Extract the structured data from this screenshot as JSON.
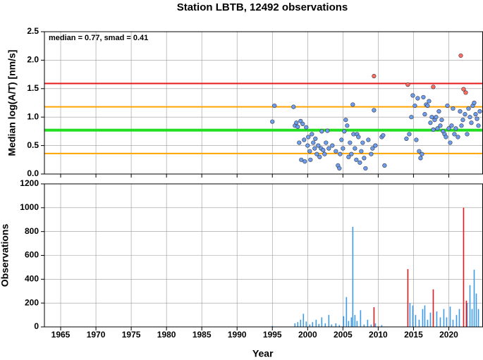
{
  "chart_data": [
    {
      "type": "scatter",
      "title": "Station LBTB, 12492 observations",
      "annotation": "median = 0.77, smad = 0.41",
      "ylabel": "Median log(A/T) [nm/s]",
      "xlim": [
        1962.7,
        2024.8
      ],
      "xticks": [
        1965,
        1970,
        1975,
        1980,
        1985,
        1990,
        1995,
        2000,
        2005,
        2010,
        2015,
        2020
      ],
      "ylim": [
        0,
        2.5
      ],
      "yticks": [
        {
          "value": 0,
          "label": "0.0"
        },
        {
          "value": 0.5,
          "label": "0.5"
        },
        {
          "value": 1,
          "label": "1.0"
        },
        {
          "value": 1.5,
          "label": "1.5"
        },
        {
          "value": 2,
          "label": "2.0"
        },
        {
          "value": 2.5,
          "label": "2.5"
        }
      ],
      "grid": true,
      "hlines": [
        {
          "value": 1.59,
          "color": "#e41a1c"
        },
        {
          "value": 1.18,
          "color": "#ffa500"
        },
        {
          "value": 0.77,
          "color": "#22dd22"
        },
        {
          "value": 0.36,
          "color": "#ffa500"
        }
      ],
      "series": [
        {
          "color": "#6d9eeb",
          "x": [
            1995.0,
            1995.3,
            1998.0,
            1998.2,
            1998.4,
            1998.6,
            1998.8,
            1999.0,
            1999.1,
            1999.3,
            1999.5,
            1999.6,
            1999.8,
            2000.0,
            2000.1,
            2000.3,
            2000.4,
            2000.6,
            2000.8,
            2001.0,
            2001.1,
            2001.3,
            2001.5,
            2001.7,
            2001.9,
            2002.0,
            2002.2,
            2002.4,
            2002.6,
            2002.8,
            2003.0,
            2003.5,
            2004.0,
            2004.3,
            2004.5,
            2004.6,
            2004.8,
            2005.0,
            2005.2,
            2005.4,
            2005.6,
            2005.8,
            2006.0,
            2006.2,
            2006.4,
            2006.5,
            2006.7,
            2006.9,
            2007.0,
            2007.2,
            2007.4,
            2007.6,
            2007.8,
            2008.0,
            2008.2,
            2008.6,
            2009.0,
            2009.2,
            2009.4,
            2009.6,
            2010.5,
            2010.7,
            2010.9,
            2014.0,
            2014.4,
            2014.7,
            2014.9,
            2015.2,
            2015.4,
            2015.6,
            2015.8,
            2016.0,
            2016.2,
            2016.4,
            2016.6,
            2016.8,
            2017.0,
            2017.2,
            2017.4,
            2017.6,
            2017.8,
            2018.0,
            2018.2,
            2018.4,
            2018.6,
            2018.8,
            2019.0,
            2019.2,
            2019.4,
            2019.6,
            2019.8,
            2020.0,
            2020.2,
            2020.4,
            2020.6,
            2020.8,
            2021.0,
            2021.3,
            2021.6,
            2021.8,
            2022.0,
            2022.3,
            2022.6,
            2022.8,
            2023.0,
            2023.2,
            2023.4,
            2023.6,
            2023.8,
            2024.0,
            2024.2,
            2024.4
          ],
          "values": [
            0.92,
            1.2,
            1.18,
            0.85,
            0.9,
            0.83,
            0.55,
            0.93,
            0.25,
            0.88,
            0.6,
            0.22,
            0.82,
            0.5,
            0.65,
            0.4,
            0.25,
            0.7,
            0.55,
            0.45,
            0.62,
            0.35,
            0.5,
            0.3,
            0.45,
            0.75,
            0.42,
            0.35,
            0.55,
            0.76,
            0.45,
            0.5,
            0.4,
            0.15,
            0.1,
            0.35,
            0.6,
            0.45,
            0.75,
            0.95,
            0.85,
            0.3,
            0.55,
            0.35,
            1.22,
            0.7,
            0.45,
            0.25,
            0.7,
            0.65,
            0.2,
            0.4,
            0.55,
            0.28,
            0.1,
            0.6,
            0.35,
            0.45,
            1.12,
            0.5,
            0.65,
            0.68,
            0.15,
            0.62,
            0.7,
            1.0,
            1.38,
            1.2,
            0.6,
            1.33,
            0.4,
            0.28,
            0.35,
            1.35,
            1.05,
            1.22,
            1.2,
            1.28,
            0.9,
            1.0,
            0.78,
            0.95,
            1.0,
            0.8,
            1.1,
            0.85,
            0.95,
            0.75,
            0.7,
            0.65,
            1.2,
            0.8,
            0.55,
            0.85,
            1.15,
            0.7,
            0.8,
            0.65,
            1.1,
            0.85,
            0.95,
            1.05,
            0.7,
            1.15,
            1.0,
            0.9,
            1.2,
            1.25,
            1.05,
            0.97,
            0.85,
            1.1
          ]
        },
        {
          "color": "#ff6f61",
          "x": [
            2009.4,
            2014.2,
            2017.8,
            2021.7,
            2022.1,
            2022.4
          ],
          "values": [
            1.72,
            1.57,
            1.53,
            2.08,
            1.49,
            1.43
          ]
        }
      ]
    },
    {
      "type": "bar",
      "ylabel": "Observations",
      "xlabel": "Year",
      "xlim": [
        1962.7,
        2024.8
      ],
      "xticks": [
        1965,
        1970,
        1975,
        1980,
        1985,
        1990,
        1995,
        2000,
        2005,
        2010,
        2015,
        2020
      ],
      "ylim": [
        0,
        1200
      ],
      "yticks": [
        0,
        200,
        400,
        600,
        800,
        1000,
        1200
      ],
      "grid": true,
      "series": [
        {
          "color": "#3d9be9",
          "x": [
            1995.0,
            1998.2,
            1998.6,
            1999.0,
            1999.4,
            1999.8,
            2000.3,
            2000.7,
            2001.2,
            2001.6,
            2002.0,
            2002.5,
            2003.0,
            2003.4,
            2004.0,
            2004.5,
            2005.1,
            2005.5,
            2005.8,
            2006.2,
            2006.4,
            2006.7,
            2007.0,
            2007.5,
            2008.0,
            2008.5,
            2009.0,
            2009.6,
            2010.5,
            2014.5,
            2014.9,
            2015.3,
            2015.8,
            2016.3,
            2016.6,
            2017.0,
            2017.4,
            2018.3,
            2018.8,
            2019.3,
            2019.7,
            2020.2,
            2020.6,
            2021.1,
            2021.5,
            2022.6,
            2023.0,
            2023.3,
            2023.6,
            2023.9,
            2024.2
          ],
          "values": [
            8,
            30,
            40,
            60,
            110,
            45,
            20,
            40,
            60,
            25,
            80,
            30,
            100,
            20,
            30,
            15,
            90,
            250,
            50,
            80,
            840,
            100,
            50,
            140,
            20,
            60,
            20,
            30,
            15,
            200,
            180,
            100,
            60,
            150,
            180,
            60,
            120,
            130,
            80,
            150,
            80,
            170,
            60,
            100,
            150,
            200,
            350,
            150,
            480,
            280,
            150
          ]
        },
        {
          "color": "#e41a1c",
          "x": [
            2009.4,
            2014.2,
            2017.8,
            2022.1,
            2022.5
          ],
          "values": [
            165,
            485,
            315,
            1000,
            220
          ]
        }
      ]
    }
  ]
}
